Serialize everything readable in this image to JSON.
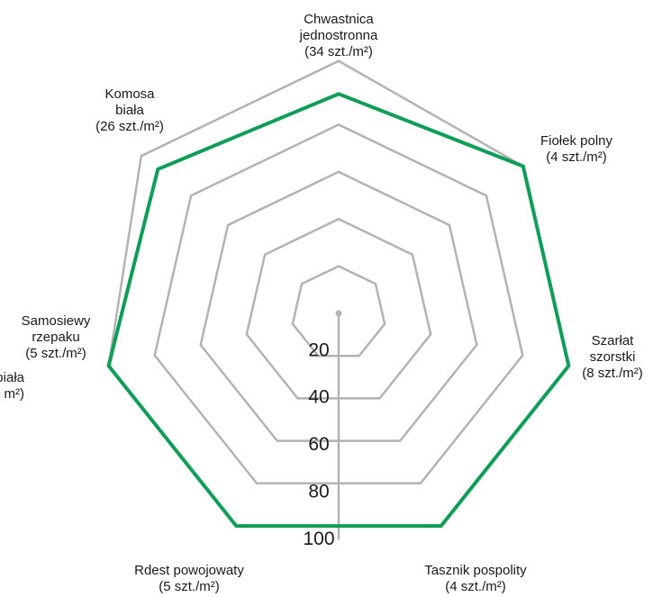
{
  "chart_data": {
    "type": "radar",
    "axes": [
      {
        "lines": [
          "Chwastnica",
          "jednostronna",
          "(34 szt./m²)"
        ]
      },
      {
        "lines": [
          "Fiołek polny",
          "(4 szt./m²)"
        ]
      },
      {
        "lines": [
          "Szarłat",
          "szorstki",
          "(8 szt./m²)"
        ]
      },
      {
        "lines": [
          "Tasznik pospolity",
          "(4 szt./m²)"
        ]
      },
      {
        "lines": [
          "Rdest powojowaty",
          "(5 szt./m²)"
        ]
      },
      {
        "lines": [
          "Samosiewy",
          "rzepaku",
          "(5 szt./m²)"
        ]
      },
      {
        "lines": [
          "Komosa",
          "biała",
          "(26 szt./m²)"
        ]
      }
    ],
    "cut_off_label": {
      "lines": [
        "biała",
        "m²)"
      ]
    },
    "radial_ticks": [
      "20",
      "40",
      "60",
      "80",
      "100"
    ],
    "tick_values": [
      20,
      40,
      60,
      80,
      100
    ],
    "rmax": 100,
    "series": [
      {
        "values": [
          93,
          100,
          100,
          100,
          100,
          100,
          98
        ],
        "color": "#0f9d58"
      }
    ],
    "outer_ring_values": [
      107,
      100,
      100,
      100,
      100,
      100,
      107
    ],
    "grid_color": "#b3b3b3"
  }
}
